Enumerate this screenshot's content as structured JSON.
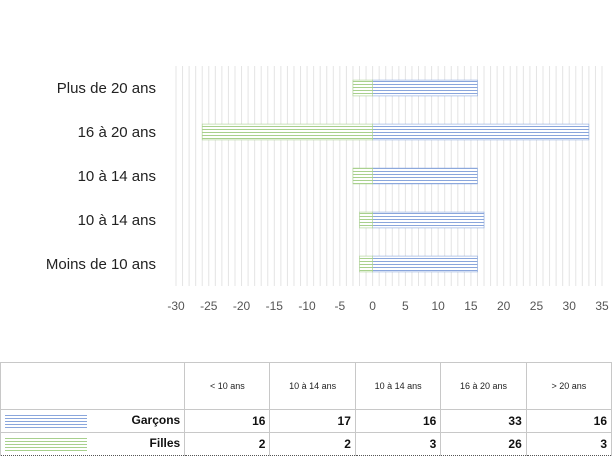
{
  "chart_data": {
    "type": "bar",
    "orientation": "horizontal",
    "stacked": true,
    "categories": [
      "Moins de 10 ans",
      "10 à 14 ans",
      "10 à 14 ans",
      "16 à 20 ans",
      "Plus de 20 ans"
    ],
    "series": [
      {
        "name": "Garçons",
        "values": [
          16,
          17,
          16,
          33,
          16
        ],
        "color": "#8aa6dc"
      },
      {
        "name": "Filles",
        "values": [
          -2,
          -2,
          -3,
          -26,
          -3
        ],
        "color": "#a8d08d"
      }
    ],
    "xlim": [
      -30,
      35
    ],
    "xticks": [
      "-30",
      "-25",
      "-20",
      "-15",
      "-10",
      "-5",
      "0",
      "5",
      "10",
      "15",
      "20",
      "25",
      "30",
      "35"
    ],
    "grid": true,
    "legend": "data-table"
  },
  "table": {
    "headers": [
      "< 10 ans",
      "10 à 14 ans",
      "10 à 14 ans",
      "16 à 20 ans",
      "> 20 ans"
    ],
    "rows": [
      {
        "label": "Garçons",
        "values": [
          "16",
          "17",
          "16",
          "33",
          "16"
        ]
      },
      {
        "label": "Filles",
        "values": [
          "2",
          "2",
          "3",
          "26",
          "3"
        ]
      }
    ]
  }
}
